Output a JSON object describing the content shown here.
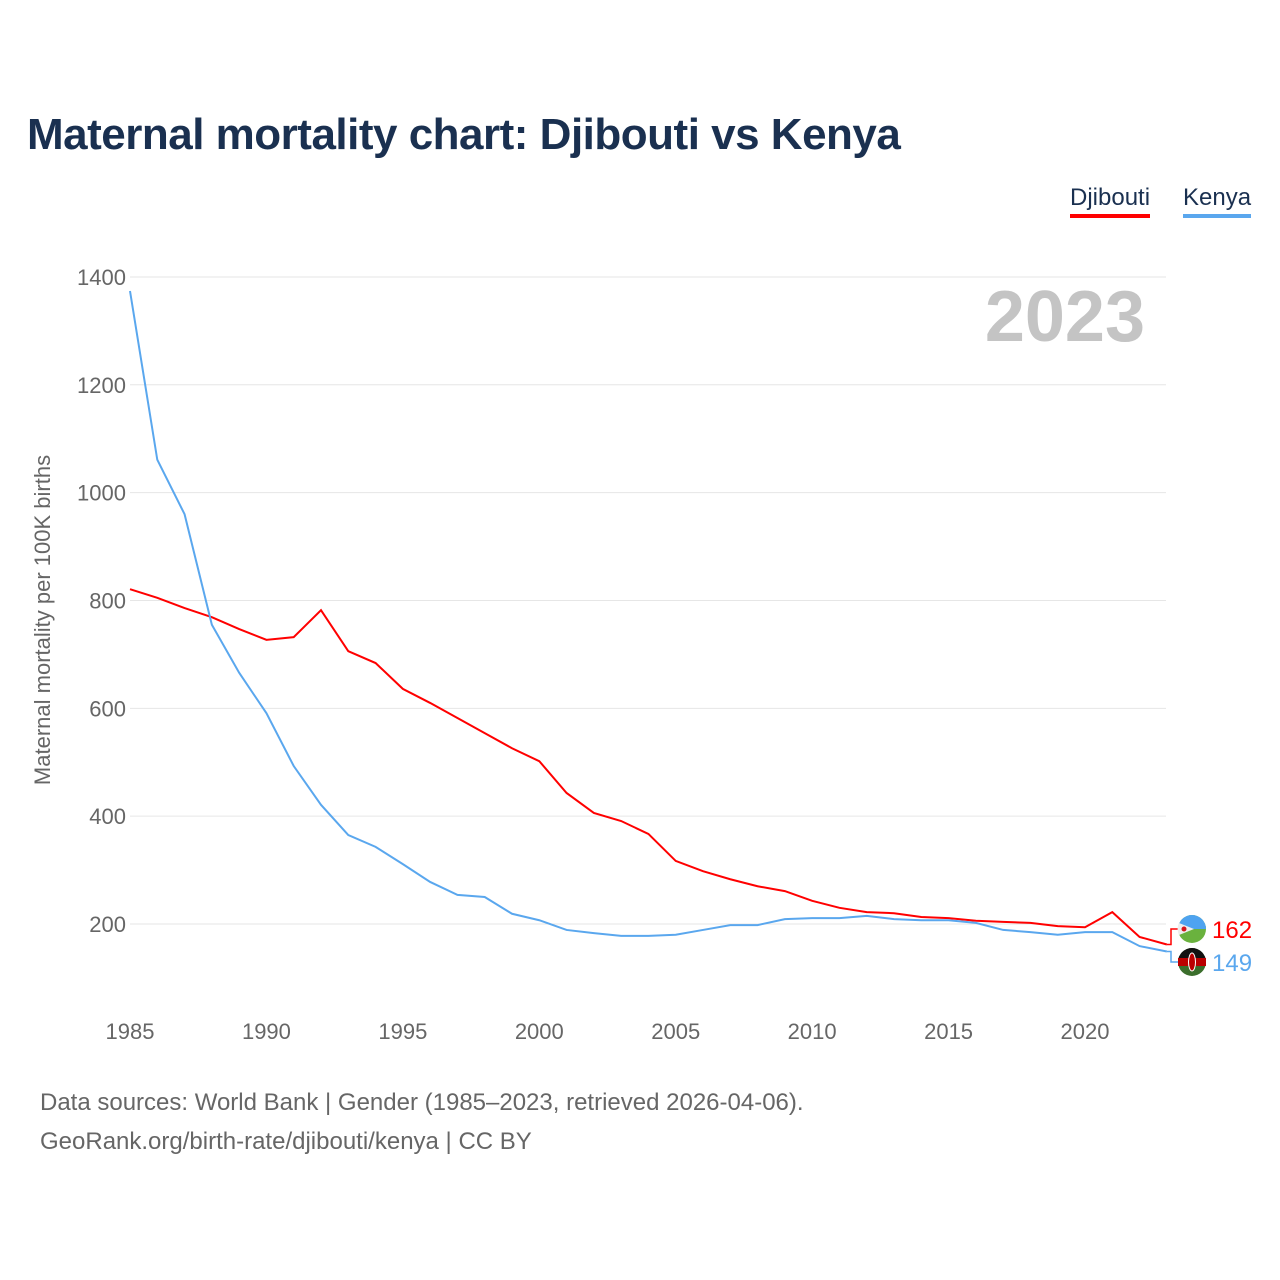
{
  "title": "Maternal mortality chart: Djibouti vs Kenya",
  "footer": {
    "line1": "Data sources: World Bank | Gender (1985–2023, retrieved 2026-04-06).",
    "line2": "GeoRank.org/birth-rate/djibouti/kenya | CC BY"
  },
  "chart_data": {
    "type": "line",
    "title": "Maternal mortality chart: Djibouti vs Kenya",
    "ylabel": "Maternal mortality per 100K births",
    "xlabel": "",
    "year_label": "2023",
    "ylim": [
      100,
      1400
    ],
    "xlim": [
      1985,
      2023
    ],
    "yticks": [
      200,
      400,
      600,
      800,
      1000,
      1200,
      1400
    ],
    "xticks": [
      1985,
      1990,
      1995,
      2000,
      2005,
      2010,
      2015,
      2020
    ],
    "grid": true,
    "legend_position": "top-right",
    "x": [
      1985,
      1986,
      1987,
      1988,
      1989,
      1990,
      1991,
      1992,
      1993,
      1994,
      1995,
      1996,
      1997,
      1998,
      1999,
      2000,
      2001,
      2002,
      2003,
      2004,
      2005,
      2006,
      2007,
      2008,
      2009,
      2010,
      2011,
      2012,
      2013,
      2014,
      2015,
      2016,
      2017,
      2018,
      2019,
      2020,
      2021,
      2022,
      2023
    ],
    "series": [
      {
        "name": "Djibouti",
        "color": "#ff0000",
        "end_label": "162",
        "values": [
          821,
          805,
          786,
          769,
          747,
          727,
          732,
          782,
          706,
          684,
          636,
          610,
          582,
          554,
          526,
          502,
          443,
          406,
          391,
          367,
          317,
          298,
          283,
          270,
          261,
          243,
          230,
          222,
          220,
          213,
          211,
          206,
          204,
          202,
          196,
          194,
          222,
          176,
          162
        ]
      },
      {
        "name": "Kenya",
        "color": "#5aa7ee",
        "end_label": "149",
        "values": [
          1374,
          1061,
          960,
          755,
          666,
          591,
          493,
          421,
          365,
          343,
          311,
          278,
          254,
          250,
          219,
          207,
          189,
          183,
          178,
          178,
          180,
          189,
          198,
          198,
          209,
          211,
          211,
          215,
          209,
          207,
          207,
          202,
          189,
          185,
          180,
          185,
          185,
          159,
          149
        ]
      }
    ]
  }
}
